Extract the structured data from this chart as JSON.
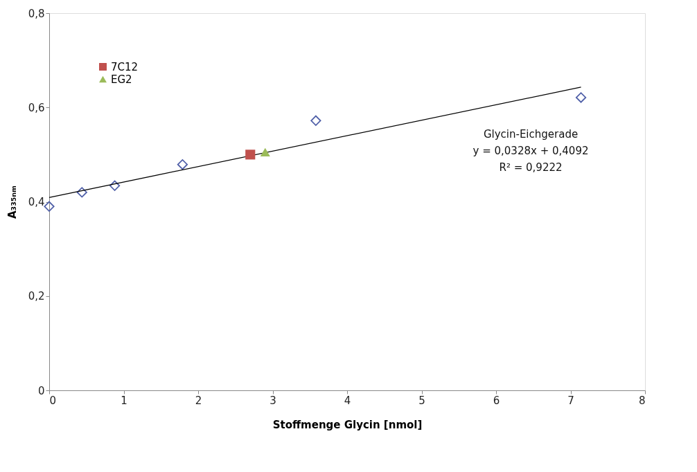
{
  "chart_data": {
    "type": "scatter",
    "xlabel": "Stoffmenge Glycin [nmol]",
    "ylabel": "A₃₃₅ₙₘ",
    "xlim": [
      0,
      8
    ],
    "xticks": [
      0,
      1,
      2,
      3,
      4,
      5,
      6,
      7,
      8
    ],
    "ylim": [
      0,
      0.8
    ],
    "yticks": [
      {
        "value": 0,
        "label": "0"
      },
      {
        "value": 0.2,
        "label": "0,2"
      },
      {
        "value": 0.4,
        "label": "0,4"
      },
      {
        "value": 0.6,
        "label": "0,6"
      },
      {
        "value": 0.8,
        "label": "0,8"
      }
    ],
    "grid": false,
    "legend": "top left",
    "annotations": [
      "Glycin-Eichgerade",
      "y = 0,0328x + 0,4092",
      "R² = 0,9222"
    ],
    "series": [
      {
        "marker": "diamond",
        "color": "#4f5fa8",
        "x": [
          0,
          0.44,
          0.88,
          1.79,
          3.58,
          7.14
        ],
        "values": [
          0.39,
          0.42,
          0.434,
          0.479,
          0.572,
          0.621
        ]
      },
      {
        "type": "line",
        "marker": "none",
        "color": "#000000",
        "x": [
          0,
          7.14
        ],
        "values": [
          0.409,
          0.643
        ]
      },
      {
        "marker": "square",
        "name": "7C12",
        "color": "#c0504d",
        "x": [
          2.7
        ],
        "values": [
          0.5
        ]
      },
      {
        "marker": "triangle",
        "name": "EG2",
        "color": "#9bbb59",
        "x": [
          2.9
        ],
        "values": [
          0.505
        ]
      }
    ]
  }
}
